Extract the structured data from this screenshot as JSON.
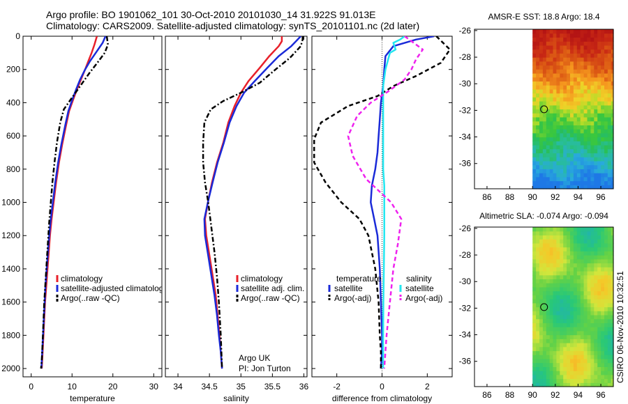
{
  "title": {
    "line1": "Argo profile: BO 1901062_101 30-Oct-2010 20101030_14 31.922S 91.013E",
    "line2": "Climatology: CARS2009. Satellite-adjusted climatology: synTS_20101101.nc (2d later)"
  },
  "credit": "CSIRO 06-Nov-2010 10:32:51",
  "colors": {
    "red": "#e8202a",
    "blue": "#1a2ad8",
    "black": "#000000",
    "cyan": "#22e6f0",
    "magenta": "#ee22ee"
  },
  "chart_data": [
    {
      "type": "line",
      "id": "temperature",
      "xlabel": "temperature",
      "xlim": [
        -2,
        32
      ],
      "ylim": [
        0,
        2050
      ],
      "xticks": [
        0,
        10,
        20,
        30
      ],
      "yticks": [
        0,
        200,
        400,
        600,
        800,
        1000,
        1200,
        1400,
        1600,
        1800,
        2000
      ],
      "legend": [
        "climatology",
        "satellite-adjusted climatology",
        "Argo(..raw -QC)"
      ],
      "series": [
        {
          "name": "climatology",
          "color": "red",
          "dash": "solid",
          "x": [
            16.1,
            15.5,
            14.8,
            14.0,
            13.2,
            12.2,
            11.2,
            10.3,
            9.3,
            8.5,
            7.6,
            6.8,
            6.1,
            5.5,
            5.0,
            4.6,
            4.3,
            4.0,
            3.7,
            3.4,
            3.2,
            3.0,
            2.8,
            2.6
          ],
          "y": [
            0,
            50,
            100,
            150,
            200,
            260,
            320,
            380,
            450,
            540,
            650,
            760,
            880,
            1000,
            1100,
            1200,
            1300,
            1400,
            1500,
            1600,
            1700,
            1800,
            1900,
            2000
          ]
        },
        {
          "name": "satellite-adjusted climatology",
          "color": "blue",
          "dash": "solid",
          "x": [
            18.2,
            17.5,
            15.8,
            14.4,
            13.2,
            12.0,
            11.0,
            10.1,
            9.1,
            8.3,
            7.4,
            6.6,
            5.9,
            5.3,
            4.8,
            4.4,
            4.1,
            3.8,
            3.5,
            3.3,
            3.1,
            2.9,
            2.7,
            2.5
          ],
          "y": [
            0,
            40,
            100,
            150,
            200,
            260,
            320,
            380,
            450,
            540,
            650,
            760,
            880,
            1000,
            1100,
            1200,
            1300,
            1400,
            1500,
            1600,
            1700,
            1800,
            1900,
            2000
          ]
        },
        {
          "name": "Argo(..raw -QC)",
          "color": "black",
          "dash": "dashdot",
          "x": [
            18.5,
            18.8,
            18.0,
            16.2,
            14.3,
            12.0,
            9.7,
            8.0,
            7.1,
            6.3,
            5.7,
            5.2,
            4.8,
            4.4,
            4.1,
            3.8,
            3.5,
            3.2,
            3.0,
            2.8,
            2.6,
            2.4
          ],
          "y": [
            0,
            50,
            100,
            160,
            220,
            300,
            380,
            440,
            520,
            640,
            760,
            880,
            1000,
            1120,
            1240,
            1360,
            1480,
            1600,
            1720,
            1840,
            1950,
            2000
          ]
        }
      ]
    },
    {
      "type": "line",
      "id": "salinity",
      "xlabel": "salinity",
      "xlim": [
        33.8,
        36.05
      ],
      "ylim": [
        0,
        2050
      ],
      "xticks": [
        34,
        34.5,
        35,
        35.5,
        36
      ],
      "legend": [
        "climatology",
        "satellite adj. clim.",
        "Argo(..raw -QC)"
      ],
      "annotation": [
        "Argo UK",
        "PI: Jon Turton"
      ],
      "series": [
        {
          "name": "climatology",
          "color": "red",
          "dash": "solid",
          "x": [
            35.65,
            35.65,
            35.6,
            35.45,
            35.3,
            35.12,
            35.0,
            34.9,
            34.8,
            34.72,
            34.62,
            34.54,
            34.48,
            34.43,
            34.45,
            34.5,
            34.55,
            34.6,
            34.63,
            34.66,
            34.68,
            34.7
          ],
          "y": [
            0,
            30,
            60,
            120,
            190,
            270,
            340,
            420,
            520,
            640,
            760,
            880,
            990,
            1100,
            1200,
            1320,
            1440,
            1560,
            1680,
            1800,
            1900,
            2000
          ]
        },
        {
          "name": "satellite adj. clim.",
          "color": "blue",
          "dash": "solid",
          "x": [
            35.95,
            35.9,
            35.8,
            35.6,
            35.42,
            35.22,
            35.05,
            34.93,
            34.82,
            34.73,
            34.63,
            34.55,
            34.48,
            34.42,
            34.43,
            34.48,
            34.53,
            34.58,
            34.62,
            34.65,
            34.68,
            34.7
          ],
          "y": [
            0,
            20,
            60,
            120,
            190,
            270,
            340,
            420,
            520,
            640,
            760,
            880,
            990,
            1100,
            1200,
            1320,
            1440,
            1560,
            1680,
            1800,
            1900,
            2000
          ]
        },
        {
          "name": "Argo(..raw -QC)",
          "color": "black",
          "dash": "dashdot",
          "x": [
            35.98,
            35.98,
            35.95,
            35.78,
            35.55,
            35.3,
            35.0,
            34.72,
            34.52,
            34.42,
            34.4,
            34.4,
            34.43,
            34.48,
            34.53,
            34.58,
            34.62,
            34.65,
            34.68,
            34.7
          ],
          "y": [
            0,
            20,
            60,
            130,
            200,
            280,
            340,
            390,
            440,
            520,
            640,
            760,
            880,
            1000,
            1150,
            1300,
            1450,
            1600,
            1800,
            2000
          ]
        }
      ]
    },
    {
      "type": "line",
      "id": "difference",
      "xlabel": "difference from climatology",
      "xlim": [
        -3.1,
        3.1
      ],
      "ylim": [
        0,
        2050
      ],
      "xticks": [
        -2,
        0,
        2
      ],
      "legend": {
        "temperature": [
          "satellite",
          "Argo(-adj)"
        ],
        "salinity": [
          "satellite",
          "Argo(-adj)"
        ],
        "temperature_title": "temperature",
        "salinity_title": "salinity"
      },
      "series": [
        {
          "name": "temperature satellite",
          "color": "blue",
          "dash": "solid",
          "x": [
            2.3,
            1.5,
            0.5,
            0.15,
            0.1,
            0.05,
            -0.05,
            -0.1,
            -0.15,
            -0.2,
            -0.3,
            -0.45,
            -0.5,
            -0.35,
            -0.2,
            -0.1,
            -0.05,
            0.0,
            0.0,
            -0.05
          ],
          "y": [
            0,
            20,
            60,
            120,
            200,
            300,
            400,
            500,
            600,
            700,
            800,
            900,
            1000,
            1100,
            1200,
            1400,
            1600,
            1800,
            1900,
            2000
          ]
        },
        {
          "name": "temperature Argo(-adj)",
          "color": "black",
          "dash": "dash",
          "x": [
            2.4,
            3.0,
            2.6,
            1.5,
            0.5,
            -0.2,
            -1.5,
            -2.7,
            -3.0,
            -3.0,
            -2.5,
            -1.8,
            -1.0,
            -0.6,
            -0.3,
            -0.15,
            -0.1,
            -0.05,
            -0.05
          ],
          "y": [
            0,
            80,
            160,
            240,
            300,
            360,
            420,
            520,
            620,
            760,
            880,
            1000,
            1100,
            1200,
            1400,
            1600,
            1800,
            1900,
            2000
          ]
        },
        {
          "name": "salinity satellite",
          "color": "cyan",
          "dash": "solid",
          "x": [
            1.0,
            0.8,
            0.5,
            0.6,
            0.35,
            0.15,
            0.05,
            0.05,
            0.05,
            0.05,
            0.1,
            0.1,
            0.1,
            0.08,
            0.06,
            0.05,
            0.05,
            0.05,
            0.05
          ],
          "y": [
            0,
            20,
            40,
            80,
            100,
            200,
            300,
            400,
            600,
            800,
            900,
            1000,
            1200,
            1400,
            1600,
            1800,
            1900,
            1950,
            2000
          ]
        },
        {
          "name": "salinity Argo(-adj)",
          "color": "magenta",
          "dash": "dash",
          "x": [
            1.0,
            1.4,
            1.8,
            1.5,
            1.3,
            1.0,
            0.3,
            -0.5,
            -1.1,
            -1.5,
            -1.3,
            -0.7,
            0.4,
            0.85,
            0.7,
            0.5,
            0.35,
            0.2,
            0.1
          ],
          "y": [
            0,
            40,
            80,
            140,
            200,
            260,
            330,
            400,
            480,
            600,
            720,
            860,
            1000,
            1100,
            1250,
            1400,
            1600,
            1800,
            2000
          ]
        }
      ]
    },
    {
      "type": "heatmap",
      "id": "sst",
      "title": "AMSR-E SST: 18.8 Argo: 18.4",
      "xlim": [
        84.9,
        97.1
      ],
      "ylim": [
        -37.9,
        -25.9
      ],
      "xticks": [
        86,
        88,
        90,
        92,
        94,
        96
      ],
      "yticks": [
        -26,
        -28,
        -30,
        -32,
        -34,
        -36
      ],
      "data_lon_min": 90,
      "marker": {
        "lon": 91.013,
        "lat": -31.922
      }
    },
    {
      "type": "heatmap",
      "id": "sla",
      "title": "Altimetric SLA: -0.074 Argo: -0.094",
      "xlim": [
        84.9,
        97.1
      ],
      "ylim": [
        -37.9,
        -25.9
      ],
      "xticks": [
        86,
        88,
        90,
        92,
        94,
        96
      ],
      "yticks": [
        -26,
        -28,
        -30,
        -32,
        -34,
        -36
      ],
      "data_lon_min": 90,
      "marker": {
        "lon": 91.013,
        "lat": -31.922
      }
    }
  ]
}
